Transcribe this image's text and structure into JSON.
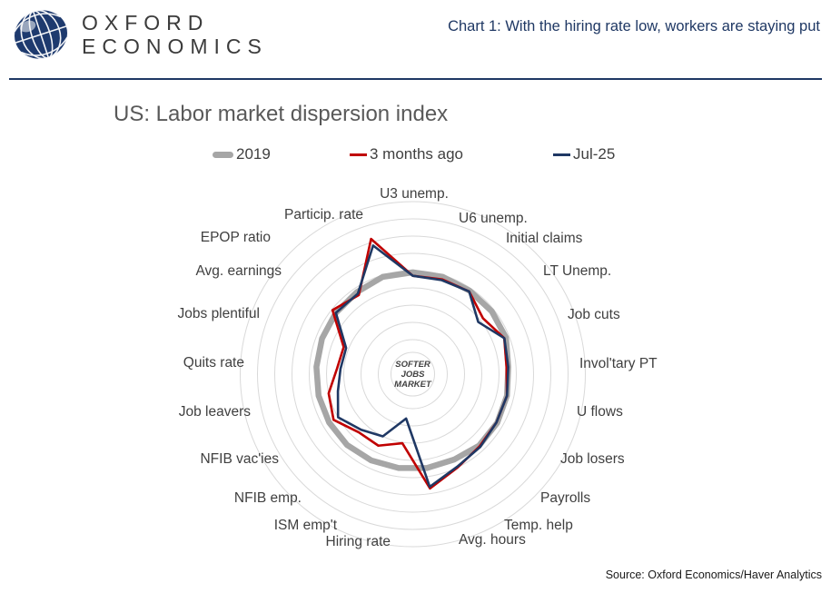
{
  "header": {
    "logo_line1": "OXFORD",
    "logo_line2": "ECONOMICS",
    "title": "Chart 1: With the hiring rate low, workers are staying put"
  },
  "chart": {
    "title": "US: Labor market dispersion index",
    "center_label_lines": [
      "SOFTER",
      "JOBS",
      "MARKET"
    ]
  },
  "legend": [
    {
      "label": "2019",
      "color": "#a6a6a6"
    },
    {
      "label": "3 months ago",
      "color": "#c00000"
    },
    {
      "label": "Jul-25",
      "color": "#1f3864"
    }
  ],
  "source": "Source:  Oxford Economics/Haver Analytics",
  "colors": {
    "accent_navy": "#1f3864",
    "series_gray": "#a6a6a6",
    "series_red": "#c00000",
    "gridline": "#d9d9d9",
    "label_gray": "#404040",
    "title_gray": "#595959"
  },
  "chart_data": {
    "type": "radar",
    "title": "US: Labor market dispersion index",
    "categories": [
      "U3 unemp.",
      "U6 unemp.",
      "Initial claims",
      "LT Unemp.",
      "Job cuts",
      "Invol'tary PT",
      "U flows",
      "Job losers",
      "Payrolls",
      "Temp. help",
      "Avg. hours",
      "Hiring rate",
      "ISM emp't",
      "NFIB emp.",
      "NFIB vac'ies",
      "Job leavers",
      "Quits rate",
      "Jobs plentiful",
      "Avg. earnings",
      "EPOP ratio",
      "Particip. rate"
    ],
    "series": [
      {
        "name": "2019",
        "color": "#a6a6a6",
        "stroke_width": 6.5,
        "values": [
          5.9,
          5.9,
          5.85,
          5.85,
          5.8,
          5.55,
          5.6,
          5.65,
          5.65,
          5.5,
          5.5,
          5.5,
          5.55,
          5.6,
          5.6,
          5.6,
          5.6,
          5.65,
          5.7,
          5.75,
          5.9
        ]
      },
      {
        "name": "3 months ago",
        "color": "#c00000",
        "stroke_width": 2.6,
        "values": [
          5.7,
          5.75,
          5.8,
          5.2,
          5.7,
          5.45,
          5.6,
          5.6,
          5.7,
          6.0,
          6.7,
          4.05,
          4.6,
          4.6,
          5.3,
          5.0,
          4.4,
          4.3,
          5.95,
          5.55,
          8.2
        ]
      },
      {
        "name": "Jul-25",
        "color": "#1f3864",
        "stroke_width": 2.6,
        "values": [
          5.7,
          5.7,
          5.8,
          4.85,
          5.7,
          5.55,
          5.6,
          5.6,
          5.75,
          5.95,
          6.6,
          2.6,
          4.0,
          4.4,
          5.0,
          4.45,
          4.2,
          4.15,
          5.7,
          5.65,
          7.8
        ]
      }
    ],
    "scale": {
      "min": 0,
      "max": 10,
      "rings": 10,
      "tick_labels_visible": false
    },
    "grid": "circular-rings-only",
    "legend_position": "top",
    "center_label": "SOFTER JOBS MARKET"
  }
}
